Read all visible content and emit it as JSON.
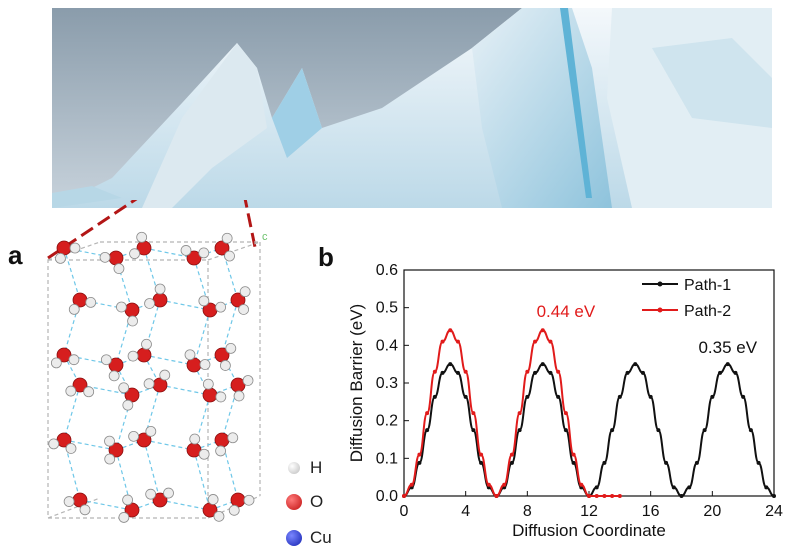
{
  "panels": {
    "a": "a",
    "b": "b"
  },
  "crystal": {
    "axis_label": "c",
    "legend": [
      {
        "name": "H-atom",
        "label": "H",
        "color": "#e8e8e8"
      },
      {
        "name": "O-atom",
        "label": "O",
        "color": "#d61e1e"
      },
      {
        "name": "Cu-atom",
        "label": "Cu",
        "color": "#2233cc"
      }
    ]
  },
  "chart_data": {
    "type": "line",
    "xlabel": "Diffusion Coordinate",
    "ylabel": "Diffusion Barrier (eV)",
    "xlim": [
      0,
      24
    ],
    "ylim": [
      0,
      0.6
    ],
    "xticks": [
      "0",
      "4",
      "8",
      "12",
      "16",
      "20",
      "24"
    ],
    "yticks": [
      "0.0",
      "0.1",
      "0.2",
      "0.3",
      "0.4",
      "0.5",
      "0.6"
    ],
    "legend_position": "top-right",
    "series": [
      {
        "name": "Path-1",
        "color": "#111111",
        "peak": 0.35,
        "x": [
          0,
          0.5,
          1,
          1.5,
          2,
          2.5,
          3,
          3.5,
          4,
          4.5,
          5,
          5.5,
          6,
          6.5,
          7,
          7.5,
          8,
          8.5,
          9,
          9.5,
          10,
          10.5,
          11,
          11.5,
          12,
          12.5,
          13,
          13.5,
          14,
          14.5,
          15,
          15.5,
          16,
          16.5,
          17,
          17.5,
          18,
          18.5,
          19,
          19.5,
          20,
          20.5,
          21,
          21.5,
          22,
          22.5,
          23,
          23.5,
          24
        ],
        "values": [
          0,
          0.023,
          0.088,
          0.175,
          0.263,
          0.327,
          0.35,
          0.327,
          0.263,
          0.175,
          0.088,
          0.023,
          0,
          0.023,
          0.088,
          0.175,
          0.263,
          0.327,
          0.35,
          0.327,
          0.263,
          0.175,
          0.088,
          0.023,
          0,
          0.023,
          0.088,
          0.175,
          0.263,
          0.327,
          0.35,
          0.327,
          0.263,
          0.175,
          0.088,
          0.023,
          0,
          0.023,
          0.088,
          0.175,
          0.263,
          0.327,
          0.35,
          0.327,
          0.263,
          0.175,
          0.088,
          0.023,
          0
        ]
      },
      {
        "name": "Path-2",
        "color": "#e11b1b",
        "peak": 0.44,
        "x": [
          0,
          0.5,
          1,
          1.5,
          2,
          2.5,
          3,
          3.5,
          4,
          4.5,
          5,
          5.5,
          6,
          6.5,
          7,
          7.5,
          8,
          8.5,
          9,
          9.5,
          10,
          10.5,
          11,
          11.5,
          12,
          12.5,
          13,
          13.5,
          14
        ],
        "values": [
          0,
          0.03,
          0.11,
          0.22,
          0.33,
          0.41,
          0.44,
          0.41,
          0.33,
          0.22,
          0.11,
          0.03,
          0,
          0.03,
          0.11,
          0.22,
          0.33,
          0.41,
          0.44,
          0.41,
          0.33,
          0.22,
          0.11,
          0.03,
          0,
          0,
          0,
          0,
          0
        ]
      }
    ],
    "annotations": [
      {
        "text": "0.44 eV",
        "color": "#e11b1b",
        "x": 10.5,
        "y": 0.475
      },
      {
        "text": "0.35 eV",
        "color": "#111111",
        "x": 21,
        "y": 0.38
      }
    ]
  }
}
